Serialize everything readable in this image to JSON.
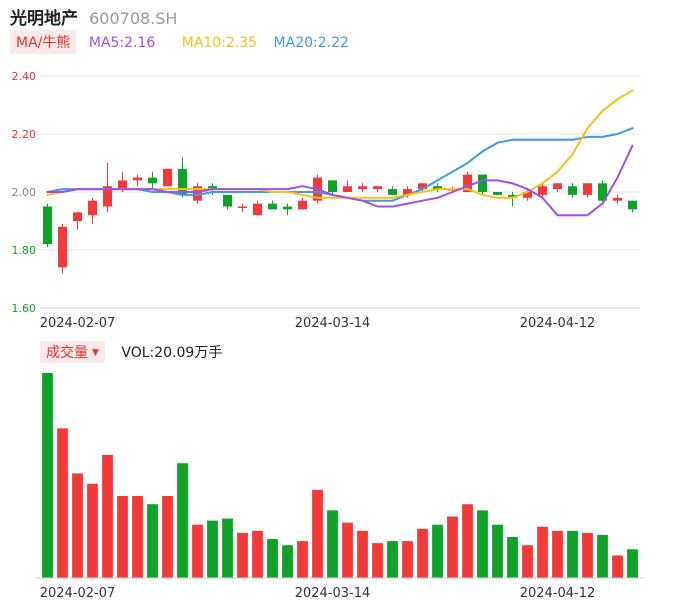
{
  "header": {
    "name": "光明地产",
    "code": "600708.SH"
  },
  "ma_legend": {
    "mode_label": "MA/牛熊",
    "ma5": "MA5:2.16",
    "ma10": "MA10:2.35",
    "ma20": "MA20:2.22"
  },
  "volume_legend": {
    "label": "成交量",
    "vol": "VOL:20.09万手"
  },
  "colors": {
    "up": "#f23a3a",
    "down": "#0fa329",
    "ma5": "#a050e8",
    "ma10": "#f4c21a",
    "ma20": "#3c9be8",
    "grid": "#e6e6e6"
  },
  "chart_data": [
    {
      "type": "candlestick",
      "ylim": [
        1.6,
        2.4
      ],
      "yticks": [
        "2.40",
        "2.20",
        "2.00",
        "1.80",
        "1.60"
      ],
      "ytick_values": [
        2.4,
        2.2,
        2.0,
        1.8,
        1.6
      ],
      "xtick_labels": [
        {
          "label": "2024-02-07",
          "index": 2
        },
        {
          "label": "2024-03-14",
          "index": 19
        },
        {
          "label": "2024-04-12",
          "index": 34
        }
      ],
      "candles": [
        {
          "o": 1.95,
          "c": 1.82,
          "h": 1.96,
          "l": 1.81
        },
        {
          "o": 1.74,
          "c": 1.88,
          "h": 1.89,
          "l": 1.72
        },
        {
          "o": 1.9,
          "c": 1.93,
          "h": 1.93,
          "l": 1.87
        },
        {
          "o": 1.92,
          "c": 1.97,
          "h": 1.98,
          "l": 1.89
        },
        {
          "o": 1.95,
          "c": 2.02,
          "h": 2.1,
          "l": 1.93
        },
        {
          "o": 2.01,
          "c": 2.04,
          "h": 2.07,
          "l": 2.0
        },
        {
          "o": 2.04,
          "c": 2.05,
          "h": 2.06,
          "l": 2.02
        },
        {
          "o": 2.05,
          "c": 2.03,
          "h": 2.07,
          "l": 2.01
        },
        {
          "o": 2.02,
          "c": 2.08,
          "h": 2.08,
          "l": 2.02
        },
        {
          "o": 2.08,
          "c": 1.99,
          "h": 2.12,
          "l": 1.98
        },
        {
          "o": 1.97,
          "c": 2.02,
          "h": 2.03,
          "l": 1.96
        },
        {
          "o": 2.02,
          "c": 2.01,
          "h": 2.03,
          "l": 1.99
        },
        {
          "o": 1.99,
          "c": 1.95,
          "h": 1.99,
          "l": 1.94
        },
        {
          "o": 1.95,
          "c": 1.95,
          "h": 1.96,
          "l": 1.93
        },
        {
          "o": 1.92,
          "c": 1.96,
          "h": 1.97,
          "l": 1.92
        },
        {
          "o": 1.96,
          "c": 1.94,
          "h": 1.97,
          "l": 1.94
        },
        {
          "o": 1.95,
          "c": 1.94,
          "h": 1.96,
          "l": 1.92
        },
        {
          "o": 1.94,
          "c": 1.97,
          "h": 1.98,
          "l": 1.94
        },
        {
          "o": 1.97,
          "c": 2.05,
          "h": 2.06,
          "l": 1.96
        },
        {
          "o": 2.04,
          "c": 2.0,
          "h": 2.04,
          "l": 1.99
        },
        {
          "o": 2.0,
          "c": 2.02,
          "h": 2.04,
          "l": 2.0
        },
        {
          "o": 2.01,
          "c": 2.02,
          "h": 2.03,
          "l": 2.0
        },
        {
          "o": 2.01,
          "c": 2.02,
          "h": 2.02,
          "l": 2.0
        },
        {
          "o": 2.01,
          "c": 1.99,
          "h": 2.02,
          "l": 1.99
        },
        {
          "o": 1.99,
          "c": 2.01,
          "h": 2.02,
          "l": 1.98
        },
        {
          "o": 2.01,
          "c": 2.03,
          "h": 2.03,
          "l": 2.0
        },
        {
          "o": 2.02,
          "c": 2.01,
          "h": 2.03,
          "l": 2.0
        },
        {
          "o": 2.01,
          "c": 2.01,
          "h": 2.02,
          "l": 2.0
        },
        {
          "o": 2.0,
          "c": 2.06,
          "h": 2.07,
          "l": 2.0
        },
        {
          "o": 2.06,
          "c": 2.0,
          "h": 2.06,
          "l": 1.99
        },
        {
          "o": 2.0,
          "c": 1.99,
          "h": 2.0,
          "l": 1.99
        },
        {
          "o": 1.99,
          "c": 1.98,
          "h": 2.0,
          "l": 1.95
        },
        {
          "o": 1.98,
          "c": 2.0,
          "h": 2.01,
          "l": 1.97
        },
        {
          "o": 1.99,
          "c": 2.02,
          "h": 2.03,
          "l": 1.98
        },
        {
          "o": 2.01,
          "c": 2.03,
          "h": 2.03,
          "l": 2.0
        },
        {
          "o": 2.02,
          "c": 1.99,
          "h": 2.03,
          "l": 1.98
        },
        {
          "o": 1.99,
          "c": 2.03,
          "h": 2.03,
          "l": 1.98
        },
        {
          "o": 2.03,
          "c": 1.97,
          "h": 2.04,
          "l": 1.96
        },
        {
          "o": 1.97,
          "c": 1.98,
          "h": 1.99,
          "l": 1.96
        },
        {
          "o": 1.97,
          "c": 1.94,
          "h": 1.97,
          "l": 1.93
        }
      ],
      "ma5": [
        2.0,
        2.0,
        2.01,
        2.01,
        2.01,
        2.01,
        2.01,
        2.01,
        2.0,
        2.0,
        2.0,
        2.01,
        2.01,
        2.01,
        2.01,
        2.01,
        2.01,
        2.02,
        2.01,
        1.99,
        1.98,
        1.97,
        1.95,
        1.95,
        1.96,
        1.97,
        1.98,
        2.0,
        2.02,
        2.04,
        2.04,
        2.03,
        2.01,
        1.98,
        1.92,
        1.92,
        1.92,
        1.96,
        2.05,
        2.16
      ],
      "ma10": [
        1.99,
        2.0,
        2.01,
        2.01,
        2.01,
        2.01,
        2.01,
        2.01,
        2.01,
        2.01,
        2.01,
        2.01,
        2.01,
        2.01,
        2.01,
        2.0,
        2.0,
        1.99,
        1.98,
        1.98,
        1.98,
        1.98,
        1.98,
        1.98,
        1.99,
        2.0,
        2.01,
        2.01,
        2.01,
        1.99,
        1.98,
        1.98,
        2.0,
        2.03,
        2.07,
        2.13,
        2.22,
        2.28,
        2.32,
        2.35
      ],
      "ma20": [
        2.0,
        2.01,
        2.01,
        2.01,
        2.01,
        2.01,
        2.01,
        2.0,
        2.0,
        1.99,
        1.99,
        2.0,
        2.0,
        2.0,
        2.0,
        2.0,
        2.0,
        2.0,
        2.0,
        1.99,
        1.98,
        1.97,
        1.97,
        1.97,
        1.99,
        2.01,
        2.04,
        2.07,
        2.1,
        2.14,
        2.17,
        2.18,
        2.18,
        2.18,
        2.18,
        2.18,
        2.19,
        2.19,
        2.2,
        2.22
      ]
    },
    {
      "type": "bar",
      "title": "成交量",
      "ylim": [
        0,
        100
      ],
      "volumes": [
        100,
        73,
        51,
        46,
        60,
        40,
        40,
        36,
        40,
        56,
        26,
        28,
        29,
        22,
        23,
        19,
        16,
        18,
        43,
        33,
        27,
        23,
        17,
        18,
        18,
        24,
        26,
        30,
        36,
        33,
        26,
        20,
        16,
        25,
        23,
        23,
        22,
        21,
        11,
        14
      ]
    }
  ]
}
